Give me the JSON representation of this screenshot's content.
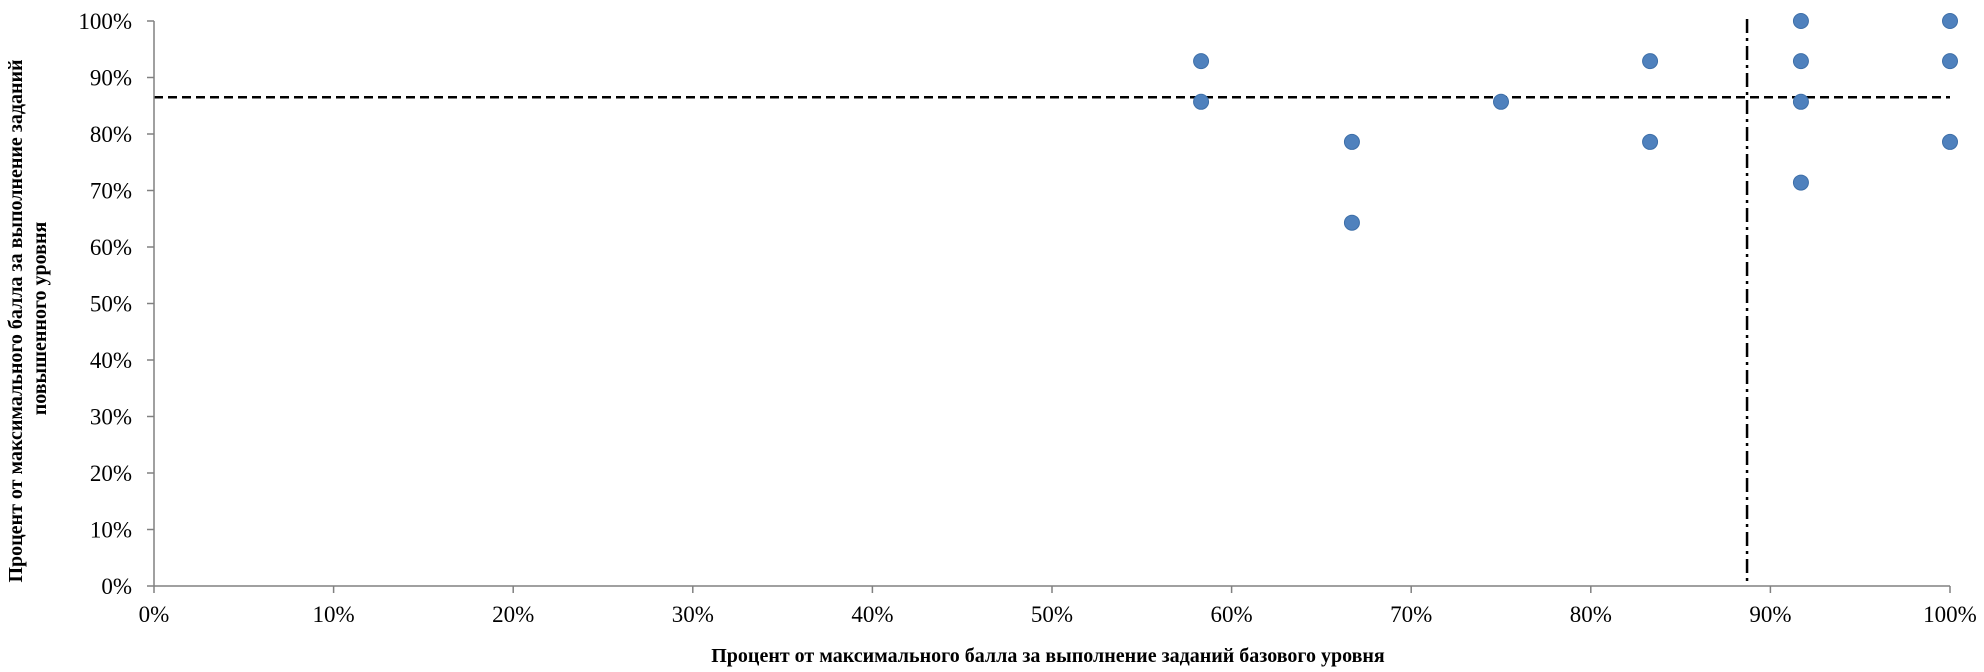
{
  "chart_data": {
    "type": "scatter",
    "title": "",
    "xlabel": "Процент от максимального балла за выполнение заданий базового уровня",
    "ylabel_lines": [
      "Процент от максимального балла за выполнение заданий",
      "повышенного уровня"
    ],
    "xlim": [
      0,
      100
    ],
    "ylim": [
      0,
      100
    ],
    "x_ticks": [
      0,
      10,
      20,
      30,
      40,
      50,
      60,
      70,
      80,
      90,
      100
    ],
    "y_ticks": [
      0,
      10,
      20,
      30,
      40,
      50,
      60,
      70,
      80,
      90,
      100
    ],
    "x_tick_labels": [
      "0%",
      "10%",
      "20%",
      "30%",
      "40%",
      "50%",
      "60%",
      "70%",
      "80%",
      "90%",
      "100%"
    ],
    "y_tick_labels": [
      "0%",
      "10%",
      "20%",
      "30%",
      "40%",
      "50%",
      "60%",
      "70%",
      "80%",
      "90%",
      "100%"
    ],
    "grid": false,
    "legend": "none",
    "series": [
      {
        "points": [
          {
            "x": 58.3,
            "y": 92.9
          },
          {
            "x": 58.3,
            "y": 85.7
          },
          {
            "x": 66.7,
            "y": 78.6
          },
          {
            "x": 66.7,
            "y": 64.3
          },
          {
            "x": 75.0,
            "y": 85.7
          },
          {
            "x": 83.3,
            "y": 92.9
          },
          {
            "x": 83.3,
            "y": 78.6
          },
          {
            "x": 91.7,
            "y": 100.0
          },
          {
            "x": 91.7,
            "y": 92.9
          },
          {
            "x": 91.7,
            "y": 85.7
          },
          {
            "x": 91.7,
            "y": 71.4
          },
          {
            "x": 100.0,
            "y": 100.0
          },
          {
            "x": 100.0,
            "y": 92.9
          },
          {
            "x": 100.0,
            "y": 78.6
          }
        ],
        "color": "#4F81BD"
      }
    ],
    "reference_lines": [
      {
        "orientation": "horizontal",
        "value": 86.5,
        "style": "dashed"
      },
      {
        "orientation": "vertical",
        "value": 88.7,
        "style": "dash-dot"
      }
    ],
    "colors": {
      "marker": "#4F81BD",
      "axis": "#808080",
      "reference": "#000000"
    }
  }
}
